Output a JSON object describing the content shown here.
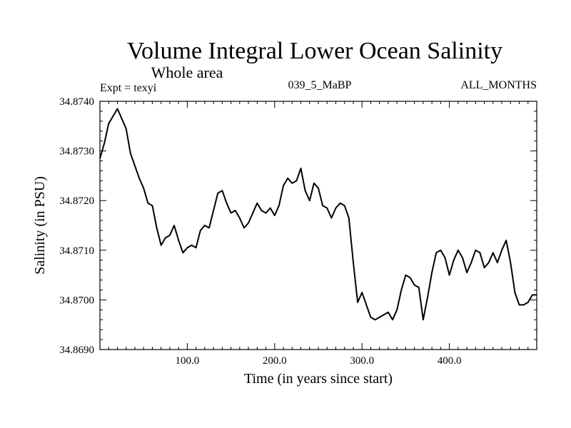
{
  "chart_data": {
    "type": "line",
    "title": "Volume Integral Lower Ocean Salinity",
    "subtitle": "Whole area",
    "annotations": {
      "experiment": "Expt = texyi",
      "run": "039_5_MaBP",
      "period": "ALL_MONTHS"
    },
    "xlabel": "Time (in years since start)",
    "ylabel": "Salinity (in PSU)",
    "xlim": [
      0,
      500
    ],
    "ylim": [
      34.869,
      34.874
    ],
    "x_ticks": [
      {
        "value": 100,
        "label": "100.0"
      },
      {
        "value": 200,
        "label": "200.0"
      },
      {
        "value": 300,
        "label": "300.0"
      },
      {
        "value": 400,
        "label": "400.0"
      }
    ],
    "y_ticks": [
      {
        "value": 34.869,
        "label": "34.8690"
      },
      {
        "value": 34.87,
        "label": "34.8700"
      },
      {
        "value": 34.871,
        "label": "34.8710"
      },
      {
        "value": 34.872,
        "label": "34.8720"
      },
      {
        "value": 34.873,
        "label": "34.8730"
      },
      {
        "value": 34.874,
        "label": "34.8740"
      }
    ],
    "grid": false,
    "line_color": "#000000",
    "series": [
      {
        "x": [
          0,
          5,
          10,
          15,
          20,
          25,
          30,
          35,
          40,
          45,
          50,
          55,
          60,
          65,
          70,
          75,
          80,
          85,
          90,
          95,
          100,
          105,
          110,
          115,
          120,
          125,
          130,
          135,
          140,
          145,
          150,
          155,
          160,
          165,
          170,
          175,
          180,
          185,
          190,
          195,
          200,
          205,
          210,
          215,
          220,
          225,
          230,
          235,
          240,
          245,
          250,
          255,
          260,
          265,
          270,
          275,
          280,
          285,
          290,
          295,
          300,
          305,
          310,
          315,
          320,
          325,
          330,
          335,
          340,
          345,
          350,
          355,
          360,
          365,
          370,
          375,
          380,
          385,
          390,
          395,
          400,
          405,
          410,
          415,
          420,
          425,
          430,
          435,
          440,
          445,
          450,
          455,
          460,
          465,
          470,
          475,
          480,
          485,
          490,
          495,
          500
        ],
        "values": [
          34.87285,
          34.87315,
          34.87355,
          34.8737,
          34.87385,
          34.87365,
          34.87345,
          34.87295,
          34.8727,
          34.87245,
          34.87225,
          34.87195,
          34.8719,
          34.87145,
          34.8711,
          34.87125,
          34.8713,
          34.8715,
          34.8712,
          34.87095,
          34.87105,
          34.8711,
          34.87105,
          34.8714,
          34.8715,
          34.87145,
          34.8718,
          34.87215,
          34.8722,
          34.87195,
          34.87175,
          34.8718,
          34.87165,
          34.87145,
          34.87155,
          34.87175,
          34.87195,
          34.8718,
          34.87175,
          34.87185,
          34.8717,
          34.8719,
          34.8723,
          34.87245,
          34.87235,
          34.8724,
          34.87265,
          34.8722,
          34.872,
          34.87235,
          34.87225,
          34.8719,
          34.87185,
          34.87165,
          34.87185,
          34.87195,
          34.8719,
          34.87165,
          34.87075,
          34.86995,
          34.87015,
          34.8699,
          34.86965,
          34.8696,
          34.86965,
          34.8697,
          34.86975,
          34.8696,
          34.8698,
          34.8702,
          34.8705,
          34.87045,
          34.8703,
          34.87025,
          34.8696,
          34.87005,
          34.87055,
          34.87095,
          34.871,
          34.87085,
          34.8705,
          34.8708,
          34.871,
          34.87085,
          34.87055,
          34.87075,
          34.871,
          34.87095,
          34.87065,
          34.87075,
          34.87095,
          34.87075,
          34.871,
          34.8712,
          34.87075,
          34.87015,
          34.8699,
          34.8699,
          34.86995,
          34.8701,
          34.8701
        ]
      }
    ]
  }
}
